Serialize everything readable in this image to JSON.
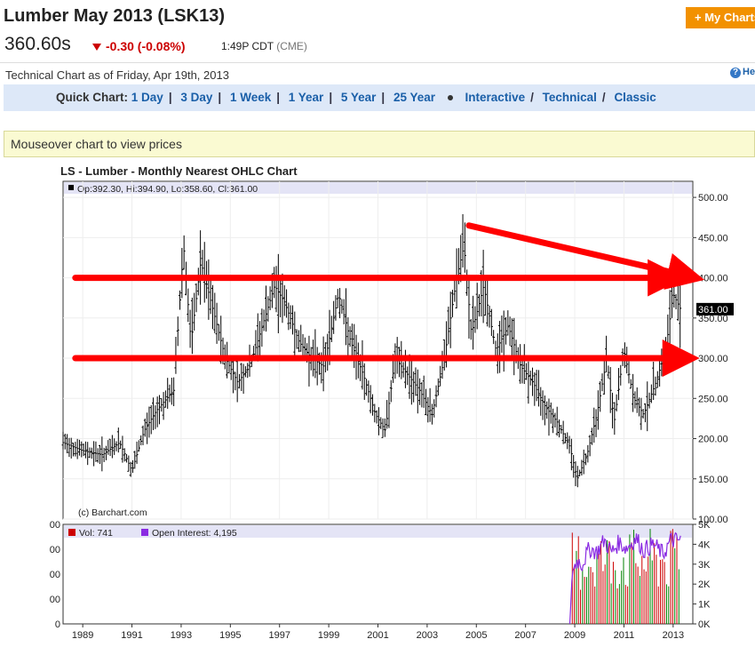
{
  "header": {
    "title": "Lumber May 2013 (LSK13)",
    "price": "360.60s",
    "change": "-0.30 (-0.08%)",
    "time": "1:49P CDT",
    "exchange": "(CME)",
    "my_chart_button": "+ My Charts",
    "help_label": "Help"
  },
  "subheader": {
    "as_of": "Technical Chart as of Friday, Apr 19th, 2013"
  },
  "quick_chart": {
    "label": "Quick Chart:",
    "links": [
      "1 Day",
      "3 Day",
      "1 Week",
      "1 Year",
      "5 Year",
      "25 Year"
    ],
    "views": [
      "Interactive",
      "Technical",
      "Classic"
    ]
  },
  "mouseover_text": "Mouseover chart to view prices",
  "chart_data": {
    "type": "ohlc",
    "title": "LS - Lumber - Monthly Nearest OHLC Chart",
    "ohlc_readout": "Op:392.30, Hi:394.90, Lo:358.60, Cl:361.00",
    "last_price_tag": "361.00",
    "credit": "(c) Barchart.com",
    "price_axis": {
      "ticks": [
        "500.00",
        "450.00",
        "400.00",
        "350.00",
        "300.00",
        "250.00",
        "200.00",
        "150.00",
        "100.00"
      ],
      "ylim": [
        100,
        520
      ]
    },
    "x_axis": {
      "ticks": [
        "1989",
        "1991",
        "1993",
        "1995",
        "1997",
        "1999",
        "2001",
        "2003",
        "2005",
        "2007",
        "2009",
        "2011",
        "2013"
      ],
      "xlim": [
        1988.2,
        2013.8
      ]
    },
    "closes_approx": [
      [
        1988.2,
        195
      ],
      [
        1989,
        185
      ],
      [
        1989.8,
        180
      ],
      [
        1990.5,
        195
      ],
      [
        1991,
        160
      ],
      [
        1991.5,
        210
      ],
      [
        1992,
        235
      ],
      [
        1992.7,
        260
      ],
      [
        1993.1,
        440
      ],
      [
        1993.4,
        320
      ],
      [
        1993.8,
        420
      ],
      [
        1994.3,
        360
      ],
      [
        1994.8,
        300
      ],
      [
        1995.3,
        270
      ],
      [
        1995.8,
        290
      ],
      [
        1996.3,
        340
      ],
      [
        1996.8,
        390
      ],
      [
        1997.2,
        370
      ],
      [
        1997.8,
        320
      ],
      [
        1998.3,
        300
      ],
      [
        1998.8,
        290
      ],
      [
        1999.4,
        380
      ],
      [
        1999.9,
        320
      ],
      [
        2000.4,
        280
      ],
      [
        2000.9,
        230
      ],
      [
        2001.3,
        210
      ],
      [
        2001.7,
        300
      ],
      [
        2002.2,
        280
      ],
      [
        2002.7,
        260
      ],
      [
        2003.2,
        230
      ],
      [
        2003.7,
        300
      ],
      [
        2004.2,
        400
      ],
      [
        2004.5,
        440
      ],
      [
        2004.8,
        330
      ],
      [
        2005.3,
        390
      ],
      [
        2005.8,
        310
      ],
      [
        2006.3,
        340
      ],
      [
        2006.8,
        290
      ],
      [
        2007.3,
        270
      ],
      [
        2007.8,
        240
      ],
      [
        2008.3,
        220
      ],
      [
        2008.8,
        190
      ],
      [
        2009.1,
        150
      ],
      [
        2009.5,
        180
      ],
      [
        2009.9,
        230
      ],
      [
        2010.3,
        300
      ],
      [
        2010.6,
        220
      ],
      [
        2011.0,
        310
      ],
      [
        2011.4,
        250
      ],
      [
        2011.8,
        230
      ],
      [
        2012.3,
        270
      ],
      [
        2012.7,
        310
      ],
      [
        2013.0,
        380
      ],
      [
        2013.3,
        361
      ]
    ],
    "volume_panel": {
      "legend_vol": "Vol: 741",
      "legend_oi": "Open Interest: 4,195",
      "right_ticks": [
        "5K",
        "4K",
        "3K",
        "2K",
        "1K",
        "0K"
      ],
      "left_ticks": [
        "00",
        "00",
        "00",
        "00",
        "0"
      ],
      "ylim": [
        0,
        5000
      ],
      "open_interest_approx": [
        [
          2008.8,
          0
        ],
        [
          2008.9,
          2600
        ],
        [
          2009.1,
          3200
        ],
        [
          2009.3,
          3000
        ],
        [
          2009.6,
          3800
        ],
        [
          2009.9,
          3600
        ],
        [
          2010.2,
          4200
        ],
        [
          2010.5,
          3600
        ],
        [
          2010.8,
          4100
        ],
        [
          2011.1,
          3800
        ],
        [
          2011.5,
          4300
        ],
        [
          2011.8,
          3700
        ],
        [
          2012.2,
          4000
        ],
        [
          2012.6,
          3500
        ],
        [
          2012.9,
          4200
        ],
        [
          2013.3,
          4195
        ]
      ]
    },
    "annotations": [
      {
        "type": "arrow",
        "from": [
          1988.7,
          400
        ],
        "to": [
          2013.1,
          400
        ]
      },
      {
        "type": "arrow",
        "from": [
          1988.7,
          300
        ],
        "to": [
          2013.7,
          300
        ]
      },
      {
        "type": "arrow",
        "from": [
          2004.7,
          465
        ],
        "to": [
          2013.9,
          400
        ]
      }
    ],
    "colors": {
      "bars": "#000000",
      "annotation_arrows": "#ff0000",
      "open_interest": "#8a2be2",
      "volume_up": "#008000",
      "volume_down": "#cc0000",
      "legend_band": "#e4e4f6"
    }
  }
}
